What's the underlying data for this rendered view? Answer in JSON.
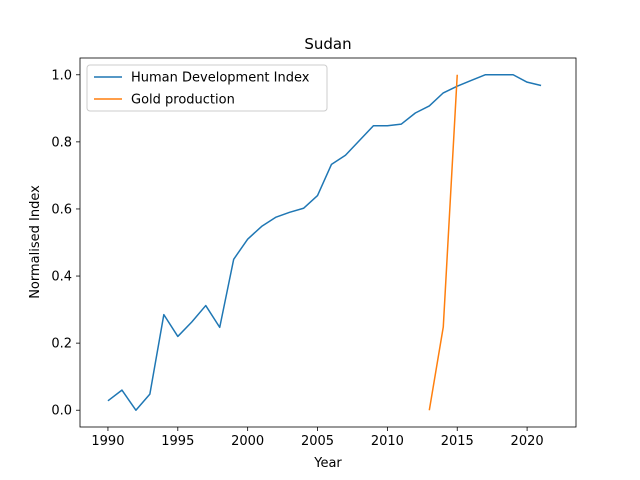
{
  "chart_data": {
    "type": "line",
    "title": "Sudan",
    "xlabel": "Year",
    "ylabel": "Normalised Index",
    "xlim": [
      1988,
      2023.5
    ],
    "ylim": [
      -0.05,
      1.05
    ],
    "xticks": [
      1990,
      1995,
      2000,
      2005,
      2010,
      2015,
      2020
    ],
    "yticks": [
      0.0,
      0.2,
      0.4,
      0.6,
      0.8,
      1.0
    ],
    "ytick_labels": [
      "0.0",
      "0.2",
      "0.4",
      "0.6",
      "0.8",
      "1.0"
    ],
    "grid": false,
    "legend_position": "top-left",
    "series": [
      {
        "name": "Human Development Index",
        "color": "#1f77b4",
        "x": [
          1990,
          1991,
          1992,
          1993,
          1994,
          1995,
          1996,
          1997,
          1998,
          1999,
          2000,
          2001,
          2002,
          2003,
          2004,
          2005,
          2006,
          2007,
          2008,
          2009,
          2010,
          2011,
          2012,
          2013,
          2014,
          2015,
          2016,
          2017,
          2018,
          2019,
          2020,
          2021
        ],
        "y": [
          0.028,
          0.06,
          0.0,
          0.048,
          0.285,
          0.22,
          0.263,
          0.312,
          0.247,
          0.45,
          0.51,
          0.548,
          0.575,
          0.59,
          0.602,
          0.64,
          0.733,
          0.76,
          0.804,
          0.848,
          0.848,
          0.853,
          0.886,
          0.907,
          0.946,
          0.966,
          0.983,
          1.0,
          1.0,
          1.0,
          0.978,
          0.968
        ]
      },
      {
        "name": "Gold production",
        "color": "#ff7f0e",
        "x": [
          2013,
          2014,
          2015
        ],
        "y": [
          0.0,
          0.248,
          1.0
        ]
      }
    ]
  }
}
